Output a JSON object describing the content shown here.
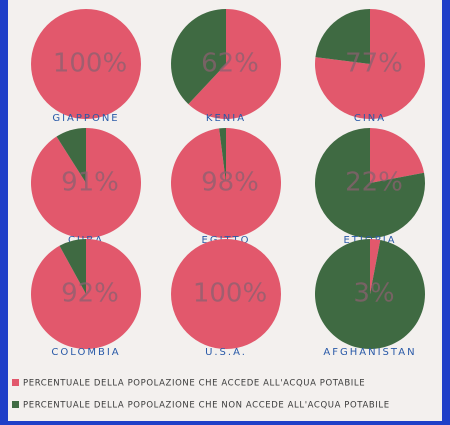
{
  "chart_data": {
    "type": "pie",
    "categories": [
      "GIAPPONE",
      "KENIA",
      "CINA",
      "CUBA",
      "EGITTO",
      "ETIOPIA",
      "COLOMBIA",
      "U.S.A.",
      "AFGHANISTAN"
    ],
    "series": [
      {
        "name": "PERCENTUALE DELLA POPOLAZIONE CHE ACCEDE ALL'ACQUA POTABILE",
        "color": "#e2586c",
        "values": [
          100,
          62,
          77,
          91,
          98,
          22,
          92,
          100,
          3
        ],
        "value_labels": [
          "100%",
          "62%",
          "77%",
          "91%",
          "98%",
          "22%",
          "92%",
          "100%",
          "3%"
        ]
      },
      {
        "name": "PERCENTUALE DELLA POPOLAZIONE CHE NON ACCEDE ALL'ACQUA POTABILE",
        "color": "#3f6a42",
        "values": [
          0,
          38,
          23,
          9,
          2,
          78,
          8,
          0,
          97
        ]
      }
    ]
  }
}
